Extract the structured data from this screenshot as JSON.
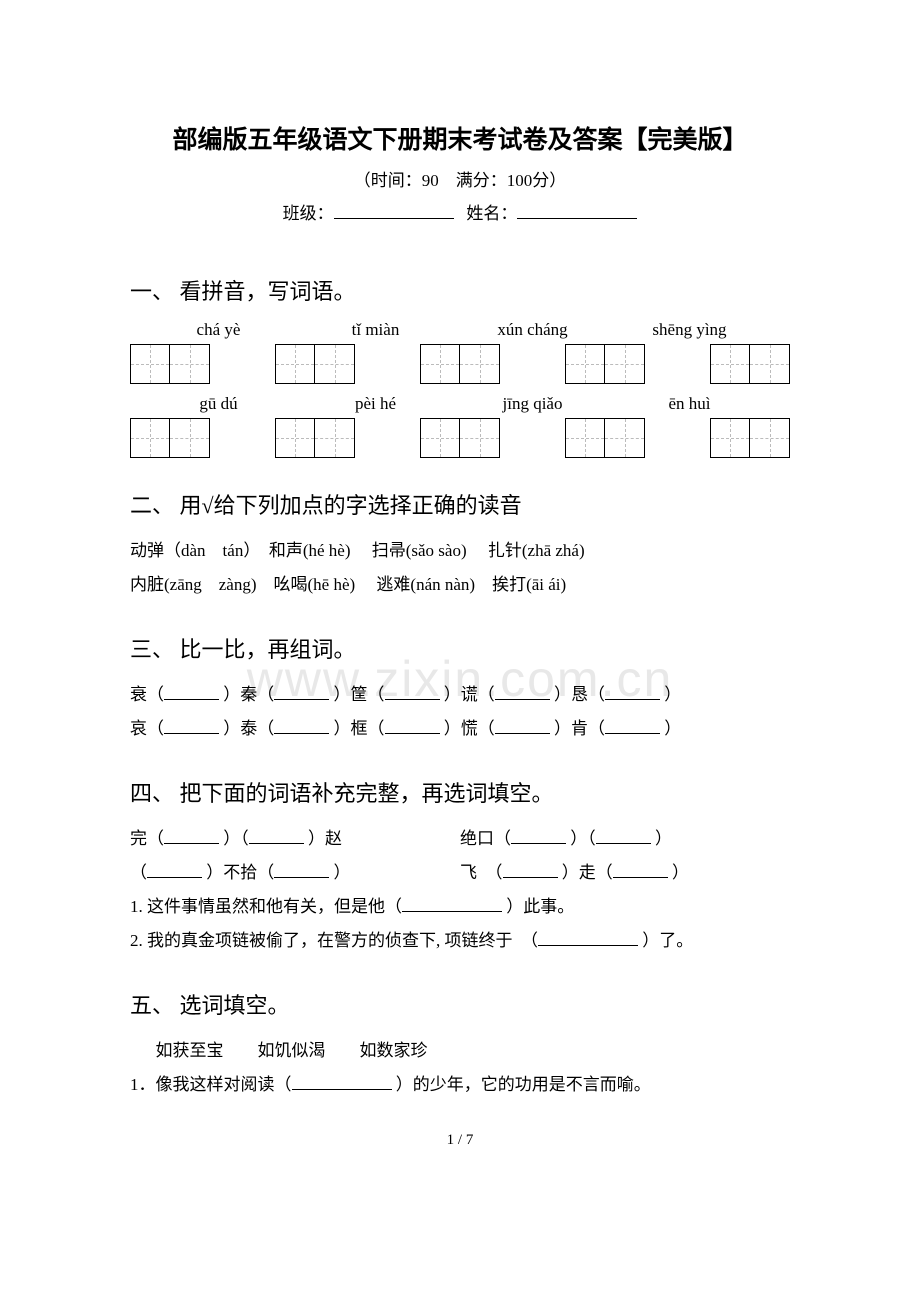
{
  "title": "部编版五年级语文下册期末考试卷及答案【完美版】",
  "subtitle": "（时间：90　满分：100分）",
  "fields": {
    "class_label": "班级：",
    "name_label": "姓名："
  },
  "watermark": "www.zixin.com.cn",
  "footer": "1 / 7",
  "sections": {
    "s1": {
      "heading": "一、 看拼音，写词语。",
      "row1": [
        "chá yè",
        "tǐ miàn",
        "xún cháng",
        "shēng yìng"
      ],
      "row2": [
        "gū dú",
        "pèi hé",
        "jīng qiǎo",
        "ēn huì"
      ]
    },
    "s2": {
      "heading": "二、 用√给下列加点的字选择正确的读音",
      "line1": "动弹（dàn　tán）　和声(hé  hè)　 扫帚(sǎo  sào)　 扎针(zhā  zhá)",
      "line2": "内脏(zāng　zàng)　吆喝(hē  hè)　 逃难(nán  nàn)　挨打(āi  ái)"
    },
    "s3": {
      "heading": "三、 比一比，再组词。",
      "line1": [
        "衰（",
        "）秦（",
        "）筐（",
        "）谎（",
        "）恳（",
        "）"
      ],
      "line2": [
        "哀（",
        "）泰（",
        "）框（",
        "）慌（",
        "）肯（",
        "）"
      ]
    },
    "s4": {
      "heading": "四、 把下面的词语补充完整，再选词填空。",
      "l1a": "完（",
      "l1b": "）（",
      "l1c": "）赵",
      "r1a": "绝口（",
      "r1b": "）（",
      "r1c": "）",
      "l2a": "（",
      "l2b": "）不拾（",
      "l2c": "）",
      "r2a": "飞　（",
      "r2b": "）走（",
      "r2c": "）",
      "q1a": "1. 这件事情虽然和他有关，但是他（",
      "q1b": "）此事。",
      "q2a": "2. 我的真金项链被偷了，在警方的侦查下, 项链终于　（",
      "q2b": "）了。"
    },
    "s5": {
      "heading": "五、 选词填空。",
      "options": "如获至宝　　如饥似渴　　如数家珍",
      "q1a": "1．像我这样对阅读（",
      "q1b": "）的少年，它的功用是不言而喻。"
    }
  }
}
